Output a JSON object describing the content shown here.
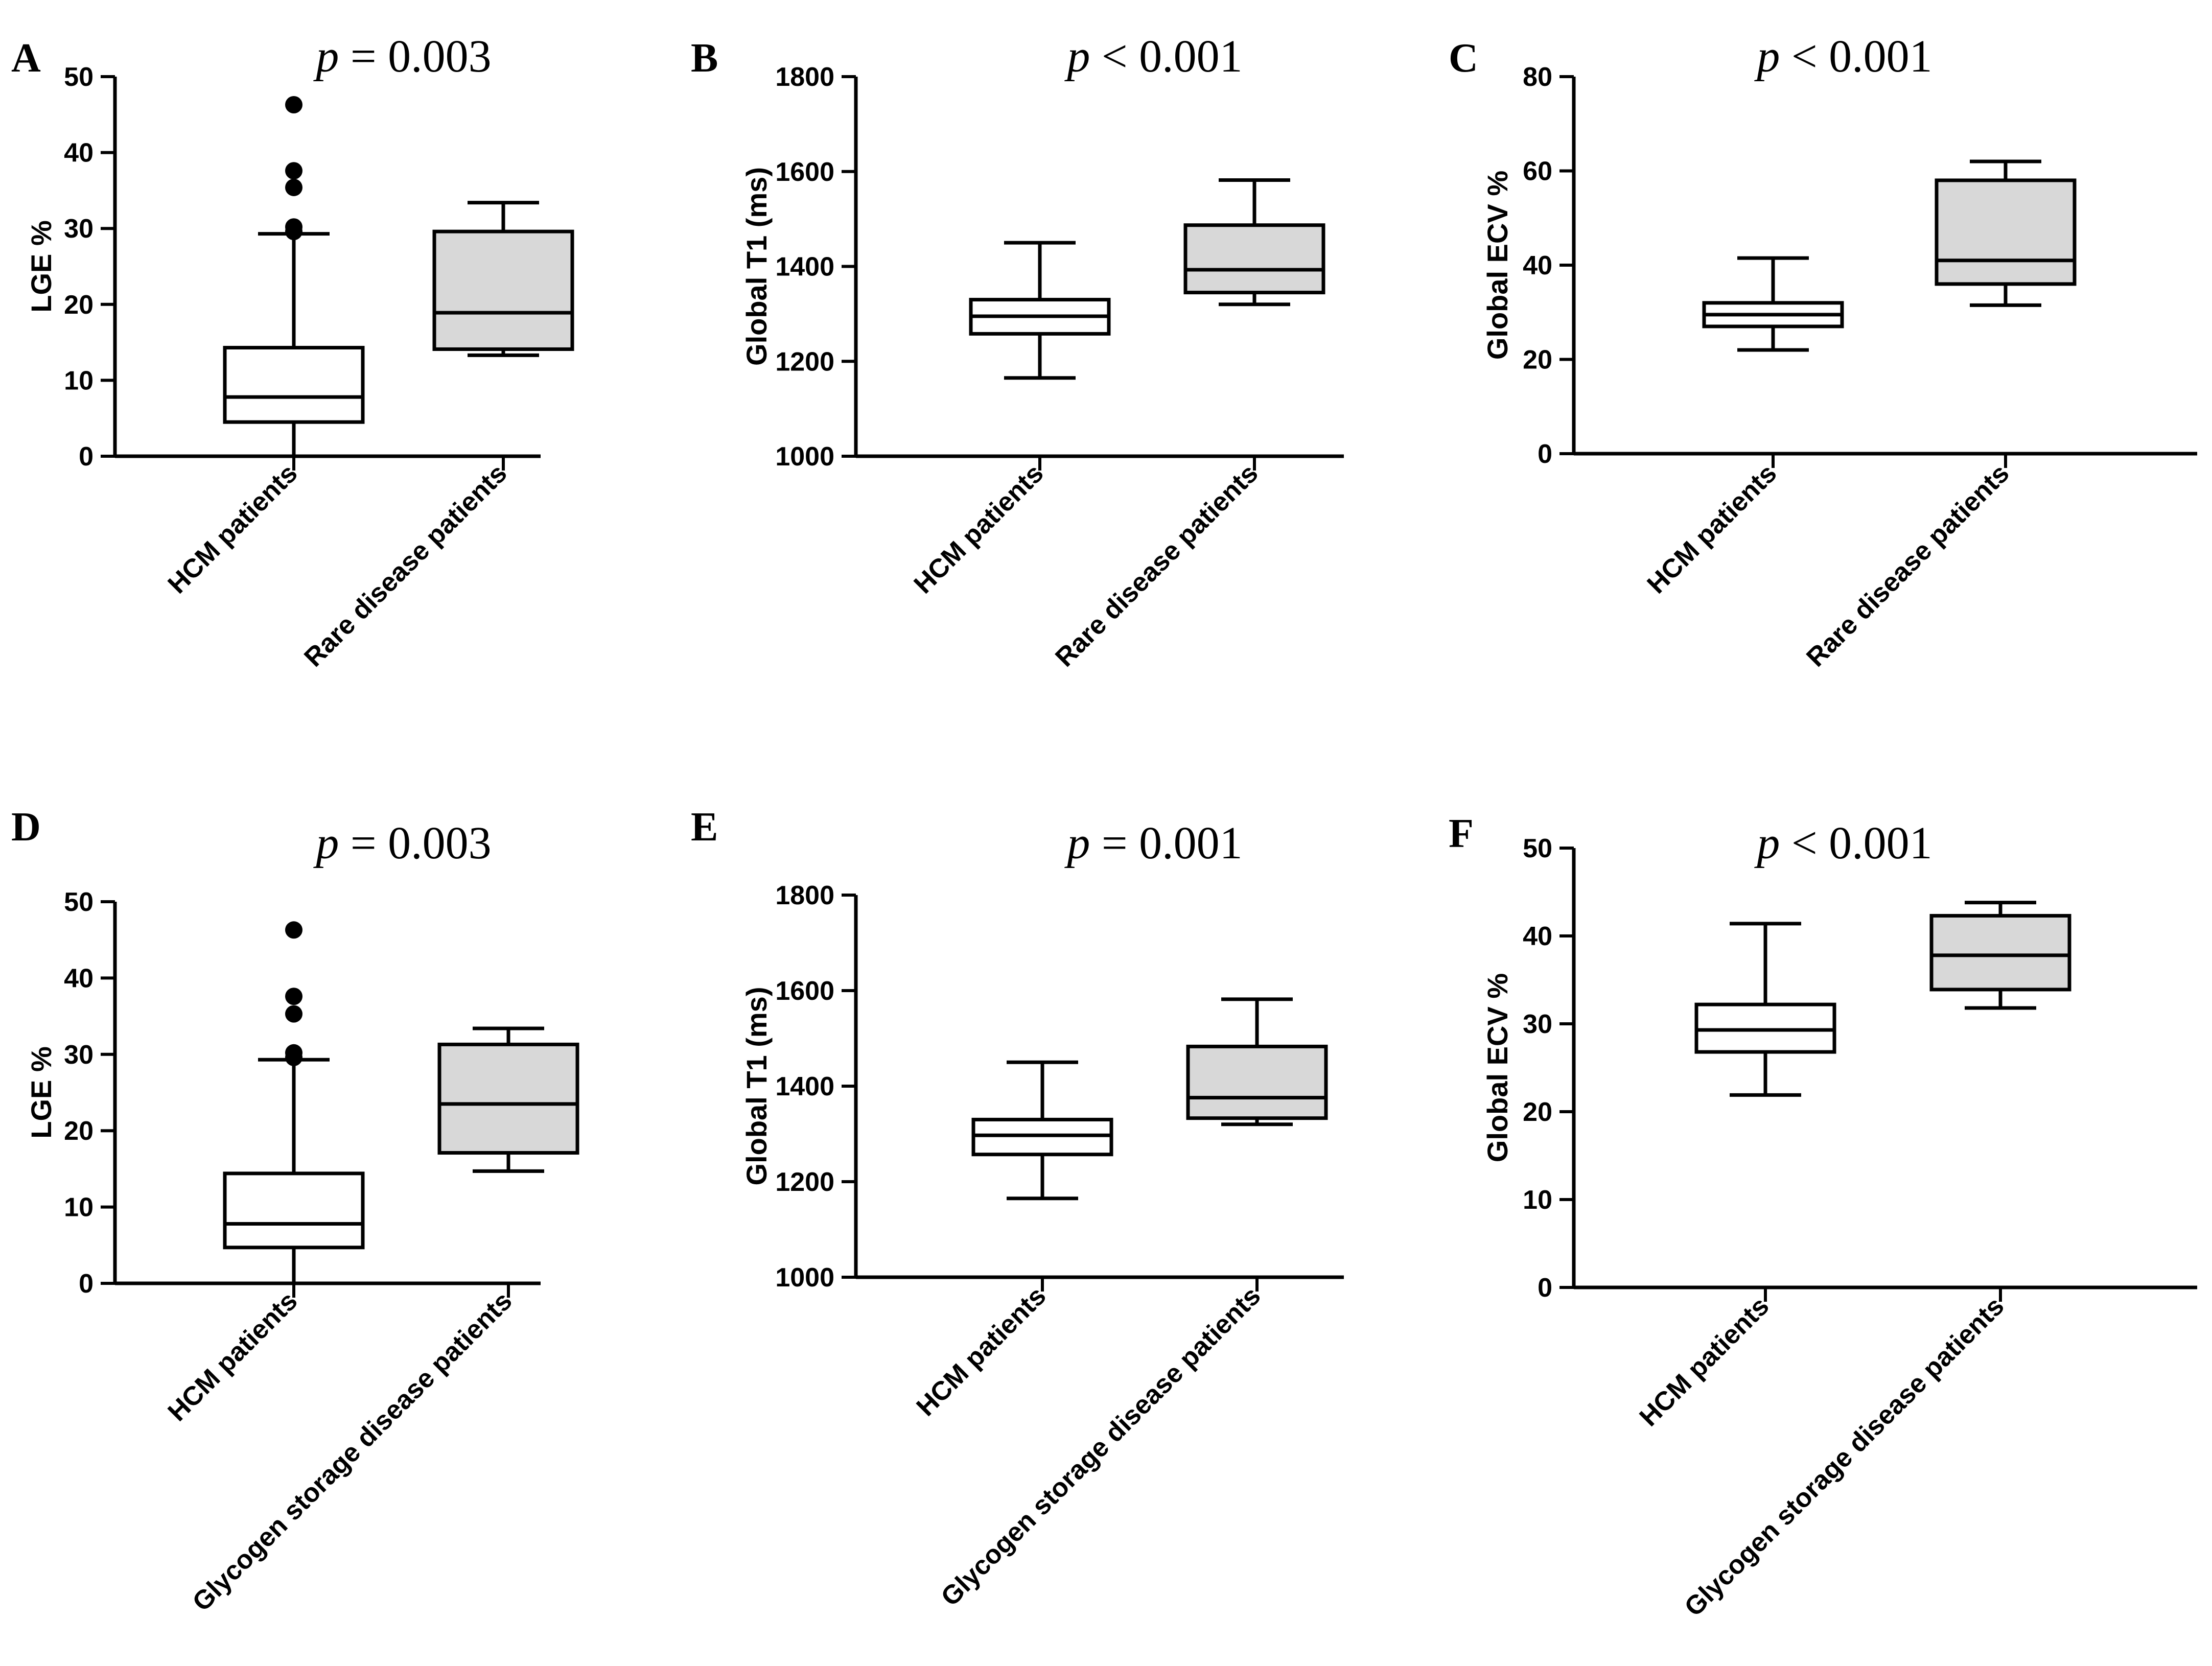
{
  "chart_data": [
    {
      "panel": "A",
      "type": "box",
      "p_prefix": "p",
      "p_rest": " = 0.003",
      "ylabel": "LGE %",
      "ylim": [
        0,
        50
      ],
      "yticks": [
        0,
        10,
        20,
        30,
        40,
        50
      ],
      "categories": [
        "HCM patients",
        "Rare disease patients"
      ],
      "boxes": [
        {
          "min": 0,
          "q1": 4.5,
          "median": 7.8,
          "q3": 14.3,
          "max": 29.3,
          "fill": "#ffffff",
          "outliers": [
            29.6,
            30.2,
            35.4,
            37.6,
            46.3
          ]
        },
        {
          "min": 13.3,
          "q1": 14.1,
          "median": 18.9,
          "q3": 29.6,
          "max": 33.4,
          "fill": "#d8d8d8",
          "outliers": []
        }
      ]
    },
    {
      "panel": "B",
      "type": "box",
      "p_prefix": "p",
      "p_rest": " < 0.001",
      "ylabel": "Global T1 (ms)",
      "ylim": [
        1000,
        1800
      ],
      "yticks": [
        1000,
        1200,
        1400,
        1600,
        1800
      ],
      "categories": [
        "HCM patients",
        "Rare disease patients"
      ],
      "boxes": [
        {
          "min": 1165,
          "q1": 1258,
          "median": 1295,
          "q3": 1330,
          "max": 1450,
          "fill": "#ffffff",
          "outliers": []
        },
        {
          "min": 1320,
          "q1": 1345,
          "median": 1393,
          "q3": 1487,
          "max": 1582,
          "fill": "#d8d8d8",
          "outliers": []
        }
      ]
    },
    {
      "panel": "C",
      "type": "box",
      "p_prefix": "p",
      "p_rest": " < 0.001",
      "ylabel": "Global ECV %",
      "ylim": [
        0,
        80
      ],
      "yticks": [
        0,
        20,
        40,
        60,
        80
      ],
      "categories": [
        "HCM patients",
        "Rare disease patients"
      ],
      "boxes": [
        {
          "min": 22,
          "q1": 27,
          "median": 29.5,
          "q3": 32,
          "max": 41.5,
          "fill": "#ffffff",
          "outliers": []
        },
        {
          "min": 31.5,
          "q1": 36,
          "median": 41,
          "q3": 58,
          "max": 62,
          "fill": "#d8d8d8",
          "outliers": []
        }
      ]
    },
    {
      "panel": "D",
      "type": "box",
      "p_prefix": "p",
      "p_rest": " = 0.003",
      "ylabel": "LGE %",
      "ylim": [
        0,
        50
      ],
      "yticks": [
        0,
        10,
        20,
        30,
        40,
        50
      ],
      "categories": [
        "HCM patients",
        "Glycogen storage disease patients"
      ],
      "boxes": [
        {
          "min": 0,
          "q1": 4.7,
          "median": 7.8,
          "q3": 14.4,
          "max": 29.3,
          "fill": "#ffffff",
          "outliers": [
            29.6,
            30.2,
            35.3,
            37.6,
            46.3
          ]
        },
        {
          "min": 14.7,
          "q1": 17.1,
          "median": 23.5,
          "q3": 31.3,
          "max": 33.4,
          "fill": "#d8d8d8",
          "outliers": []
        }
      ]
    },
    {
      "panel": "E",
      "type": "box",
      "p_prefix": "p",
      "p_rest": " = 0.001",
      "ylabel": "Global T1 (ms)",
      "ylim": [
        1000,
        1800
      ],
      "yticks": [
        1000,
        1200,
        1400,
        1600,
        1800
      ],
      "categories": [
        "HCM patients",
        "Glycogen storage  disease patients"
      ],
      "boxes": [
        {
          "min": 1165,
          "q1": 1257,
          "median": 1297,
          "q3": 1330,
          "max": 1450,
          "fill": "#ffffff",
          "outliers": []
        },
        {
          "min": 1320,
          "q1": 1333,
          "median": 1376,
          "q3": 1483,
          "max": 1582,
          "fill": "#d8d8d8",
          "outliers": []
        }
      ]
    },
    {
      "panel": "F",
      "type": "box",
      "p_prefix": "p",
      "p_rest": " < 0.001",
      "ylabel": "Global ECV %",
      "ylim": [
        0,
        50
      ],
      "yticks": [
        0,
        10,
        20,
        30,
        40,
        50
      ],
      "categories": [
        "HCM patients",
        "Glycogen storage disease patients"
      ],
      "boxes": [
        {
          "min": 21.9,
          "q1": 26.8,
          "median": 29.3,
          "q3": 32.2,
          "max": 41.4,
          "fill": "#ffffff",
          "outliers": []
        },
        {
          "min": 31.8,
          "q1": 33.9,
          "median": 37.8,
          "q3": 42.3,
          "max": 43.8,
          "fill": "#d8d8d8",
          "outliers": []
        }
      ]
    }
  ]
}
